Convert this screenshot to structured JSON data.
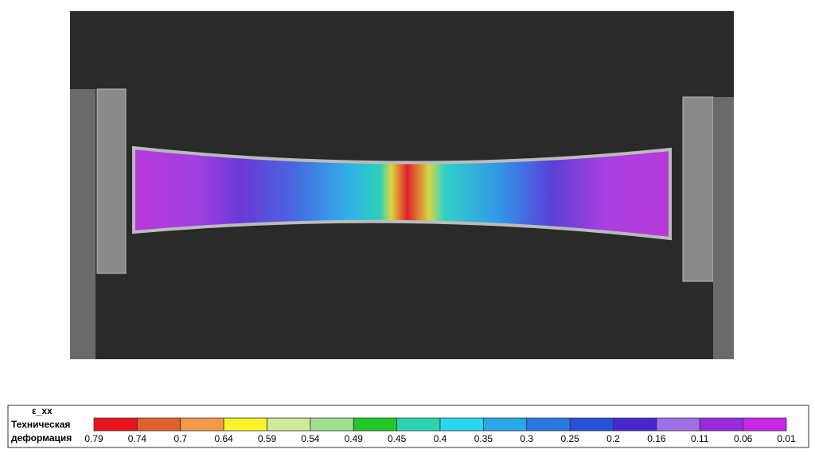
{
  "image": {
    "description": "Tensile specimen with strain field overlay"
  },
  "legend": {
    "title": "ε_xx",
    "label_lines": [
      "Техническая",
      "деформация"
    ],
    "ticks": [
      0.79,
      0.74,
      0.7,
      0.64,
      0.59,
      0.54,
      0.49,
      0.45,
      0.4,
      0.35,
      0.3,
      0.25,
      0.2,
      0.16,
      0.11,
      0.06,
      0.01
    ],
    "colors": [
      "#e8141c",
      "#e0602a",
      "#f39a4a",
      "#f8f428",
      "#cfe89a",
      "#9fe090",
      "#22c82a",
      "#2ad4b0",
      "#28d8f0",
      "#28a8e8",
      "#2878e0",
      "#2850d8",
      "#4a28d0",
      "#a070e8",
      "#9a2ae0",
      "#c828e8"
    ]
  }
}
